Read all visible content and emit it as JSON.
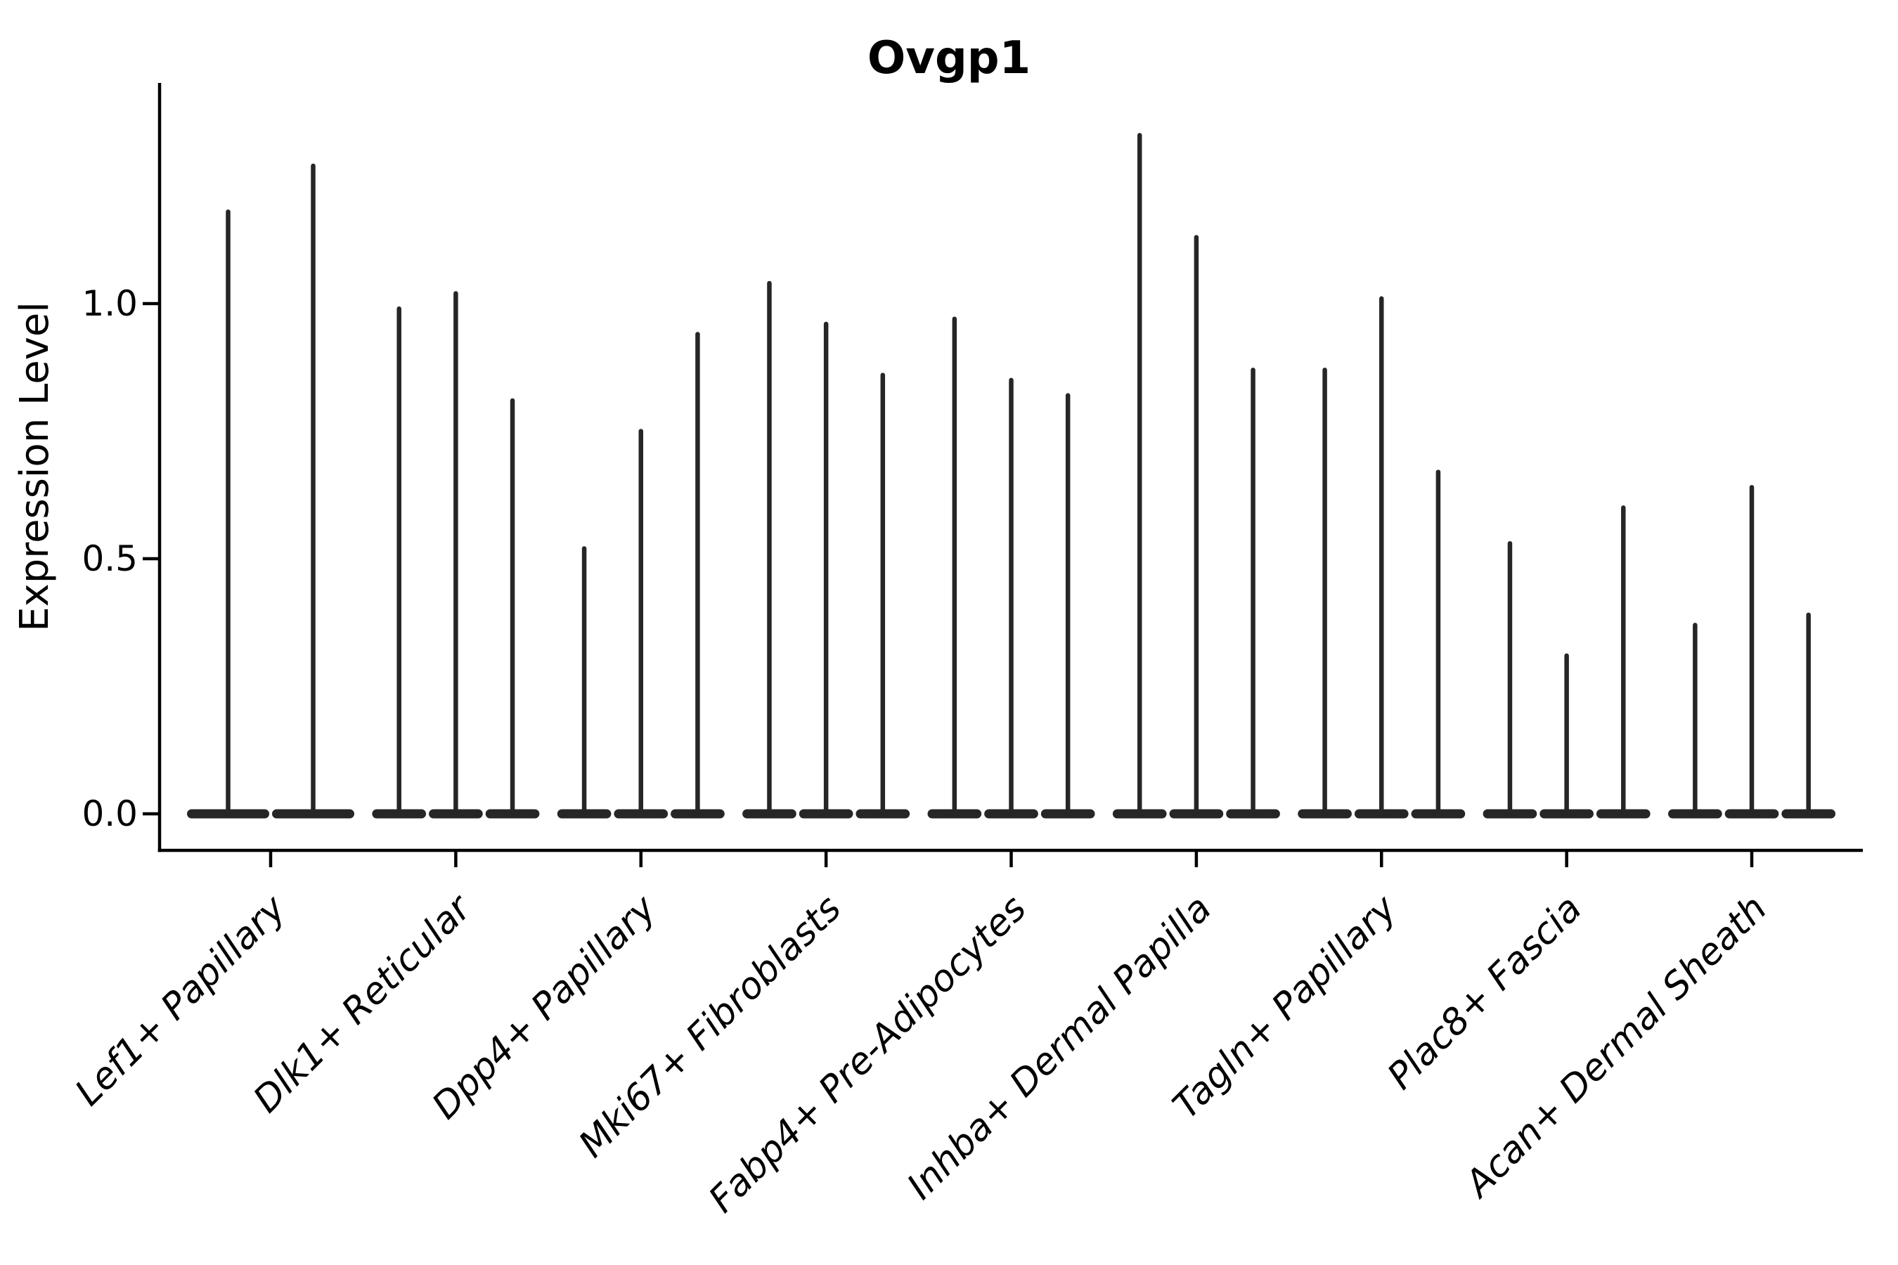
{
  "figure": {
    "background": "#ffffff",
    "ink_color": "#262626",
    "axis_color": "#000000"
  },
  "chart_data": {
    "type": "violin",
    "title": "Ovgp1",
    "xlabel": "",
    "ylabel": "Expression Level",
    "ylim": [
      -0.07,
      1.43
    ],
    "yticks": [
      0.0,
      0.5,
      1.0
    ],
    "ytick_labels": [
      "0.0",
      "0.5",
      "1.0"
    ],
    "grid": false,
    "legend": "none",
    "style": "very thin violin spikes rising from a flat dense mass at 0; one spike per violin; groups of side-by-side violins",
    "categories": [
      "Lef1+ Papillary",
      "Dlk1+ Reticular",
      "Dpp4+ Papillary",
      "Mki67+ Fibroblasts",
      "Fabp4+ Pre-Adipocytes",
      "Inhba+ Dermal Papilla",
      "Tagln+ Papillary",
      "Plac8+ Fascia",
      "Acan+ Dermal Sheath"
    ],
    "groups": [
      {
        "label": "Lef1+ Papillary",
        "violin_peaks": [
          1.18,
          1.27
        ]
      },
      {
        "label": "Dlk1+ Reticular",
        "violin_peaks": [
          0.99,
          1.02,
          0.81
        ]
      },
      {
        "label": "Dpp4+ Papillary",
        "violin_peaks": [
          0.52,
          0.75,
          0.94
        ]
      },
      {
        "label": "Mki67+ Fibroblasts",
        "violin_peaks": [
          1.04,
          0.96,
          0.86
        ]
      },
      {
        "label": "Fabp4+ Pre-Adipocytes",
        "violin_peaks": [
          0.97,
          0.85,
          0.82
        ]
      },
      {
        "label": "Inhba+ Dermal Papilla",
        "violin_peaks": [
          1.33,
          1.13,
          0.87
        ]
      },
      {
        "label": "Tagln+ Papillary",
        "violin_peaks": [
          0.87,
          1.01,
          0.67
        ]
      },
      {
        "label": "Plac8+ Fascia",
        "violin_peaks": [
          0.53,
          0.31,
          0.6
        ]
      },
      {
        "label": "Acan+ Dermal Sheath",
        "violin_peaks": [
          0.37,
          0.64,
          0.39
        ]
      }
    ]
  }
}
